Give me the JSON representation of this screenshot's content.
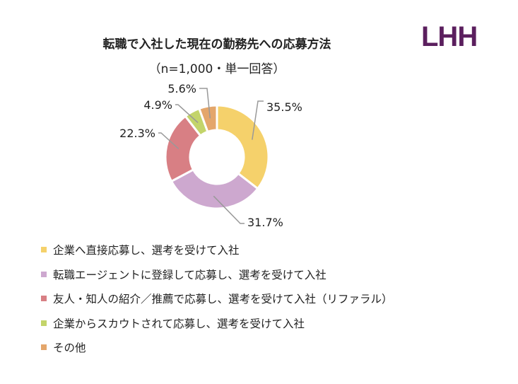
{
  "logo": "LHH",
  "chart_data": {
    "type": "pie",
    "donut": true,
    "title": "転職で入社した現在の勤務先への応募方法",
    "subtitle": "（n=1,000・単一回答）",
    "categories": [
      "企業へ直接応募し、選考を受けて入社",
      "転職エージェントに登録して応募し、選考を受けて入社",
      "友人・知人の紹介／推薦で応募し、選考を受けて入社（リファラル）",
      "企業からスカウトされて応募し、選考を受けて入社",
      "その他"
    ],
    "values": [
      35.5,
      31.7,
      22.3,
      4.9,
      5.6
    ],
    "labels": [
      "35.5%",
      "31.7%",
      "22.3%",
      "4.9%",
      "5.6%"
    ],
    "colors": [
      "#F5D16B",
      "#CDA8CF",
      "#D87F84",
      "#C3D46A",
      "#E4A66B"
    ],
    "legend_position": "bottom"
  }
}
